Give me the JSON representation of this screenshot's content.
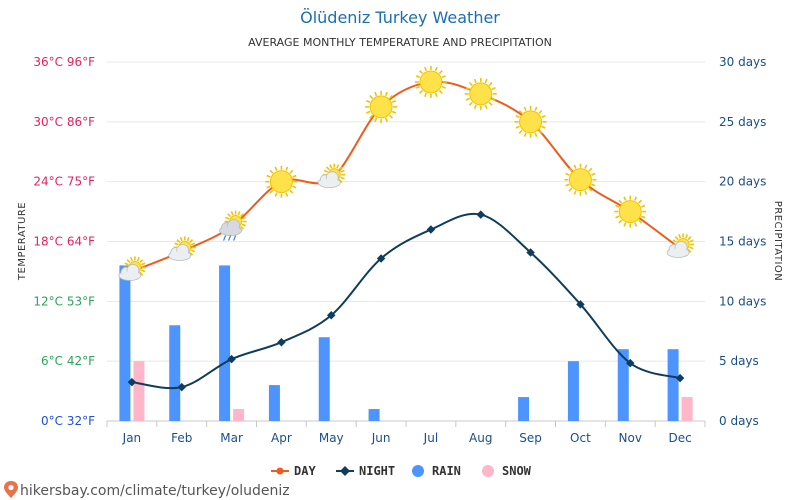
{
  "chart_data": {
    "type": "line+bar",
    "title": "Ölüdeniz Turkey Weather",
    "subtitle": "AVERAGE MONTHLY TEMPERATURE AND PRECIPITATION",
    "left_axis_label": "TEMPERATURE",
    "right_axis_label": "PRECIPITATION",
    "categories": [
      "Jan",
      "Feb",
      "Mar",
      "Apr",
      "May",
      "Jun",
      "Jul",
      "Aug",
      "Sep",
      "Oct",
      "Nov",
      "Dec"
    ],
    "temperature_axis": {
      "unit": "°C",
      "range": [
        0,
        36
      ],
      "ticks": [
        {
          "value": 0,
          "label": "0°C 32°F",
          "color": "#1f4fd6"
        },
        {
          "value": 6,
          "label": "6°C 42°F",
          "color": "#2aa55a"
        },
        {
          "value": 12,
          "label": "12°C 53°F",
          "color": "#2aa55a"
        },
        {
          "value": 18,
          "label": "18°C 64°F",
          "color": "#e0245e"
        },
        {
          "value": 24,
          "label": "24°C 75°F",
          "color": "#e0245e"
        },
        {
          "value": 30,
          "label": "30°C 86°F",
          "color": "#e0245e"
        },
        {
          "value": 36,
          "label": "36°C 96°F",
          "color": "#e0245e"
        }
      ]
    },
    "precipitation_axis": {
      "unit": "days",
      "range": [
        0,
        30
      ],
      "ticks": [
        {
          "value": 0,
          "label": "0 days"
        },
        {
          "value": 5,
          "label": "5 days"
        },
        {
          "value": 10,
          "label": "10 days"
        },
        {
          "value": 15,
          "label": "15 days"
        },
        {
          "value": 20,
          "label": "20 days"
        },
        {
          "value": 25,
          "label": "25 days"
        },
        {
          "value": 30,
          "label": "30 days"
        }
      ],
      "color": "#1a4f8a"
    },
    "series": [
      {
        "name": "DAY",
        "kind": "line",
        "axis": "temperature",
        "color": "#f05a1a",
        "values": [
          15,
          17,
          19.5,
          24,
          24.3,
          31.5,
          34,
          32.8,
          30,
          24.2,
          21,
          17.3
        ]
      },
      {
        "name": "NIGHT",
        "kind": "line",
        "axis": "temperature",
        "color": "#0f3d5c",
        "values": [
          3.9,
          3.4,
          6.2,
          7.9,
          10.6,
          16.3,
          19.2,
          20.7,
          16.9,
          11.7,
          5.8,
          4.3
        ]
      },
      {
        "name": "RAIN",
        "kind": "bar",
        "axis": "precipitation",
        "color": "#4d94ff",
        "values": [
          13,
          8,
          13,
          3,
          7,
          1,
          0,
          0,
          2,
          5,
          6,
          6
        ]
      },
      {
        "name": "SNOW",
        "kind": "bar",
        "axis": "precipitation",
        "color": "#ffb6c8",
        "values": [
          5,
          0,
          1,
          0,
          0,
          0,
          0,
          0,
          0,
          0,
          0,
          2
        ]
      }
    ],
    "day_icons": [
      "partly-cloudy-icon",
      "partly-cloudy-icon",
      "rain-cloud-icon",
      "sun-icon",
      "partly-cloudy-icon",
      "sun-icon",
      "sun-icon",
      "sun-icon",
      "sun-icon",
      "sun-icon",
      "sun-icon",
      "partly-cloudy-icon"
    ],
    "grid": true,
    "legend_position": "bottom-center"
  },
  "credit": "hikersbay.com/climate/turkey/oludeniz"
}
